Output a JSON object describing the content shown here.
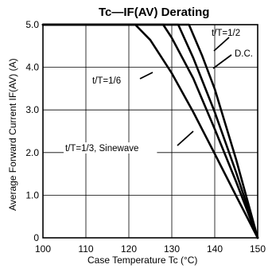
{
  "chart_data": {
    "type": "line",
    "title": "Tc—IF(AV) Derating",
    "xlabel": "Case Temperature   Tc (°C)",
    "ylabel": "Average Forward Current  IF(AV) (A)",
    "xlim": [
      100,
      150
    ],
    "ylim": [
      0,
      5
    ],
    "xticks": [
      "100",
      "110",
      "120",
      "130",
      "140",
      "150"
    ],
    "yticks": [
      "0",
      "1.0",
      "2.0",
      "3.0",
      "4.0",
      "5.0"
    ],
    "grid": true,
    "series": [
      {
        "name": "t/T=1/3, Sinewave",
        "x": [
          100,
          121.5,
          125,
          130,
          135,
          140,
          145,
          150
        ],
        "y": [
          5.0,
          5.0,
          4.64,
          3.86,
          2.95,
          1.97,
          0.98,
          0.0
        ]
      },
      {
        "name": "t/T=1/6",
        "x": [
          100,
          128,
          130,
          135,
          140,
          145,
          150
        ],
        "y": [
          5.0,
          5.0,
          4.69,
          3.74,
          2.55,
          1.31,
          0.0
        ]
      },
      {
        "name": "D.C.",
        "x": [
          100,
          131.5,
          135,
          140,
          145,
          150
        ],
        "y": [
          5.0,
          5.0,
          4.22,
          2.95,
          1.53,
          0.0
        ]
      },
      {
        "name": "t/T=1/2",
        "x": [
          100,
          134,
          137,
          140,
          145,
          150
        ],
        "y": [
          5.0,
          5.0,
          4.29,
          3.49,
          1.83,
          0.0
        ]
      }
    ],
    "annotations": [
      {
        "text": "t/T=1/2",
        "target_series": "t/T=1/2"
      },
      {
        "text": "D.C.",
        "target_series": "D.C."
      },
      {
        "text": "t/T=1/6",
        "target_series": "t/T=1/6"
      },
      {
        "text": "t/T=1/3,  Sinewave",
        "target_series": "t/T=1/3, Sinewave"
      }
    ]
  }
}
